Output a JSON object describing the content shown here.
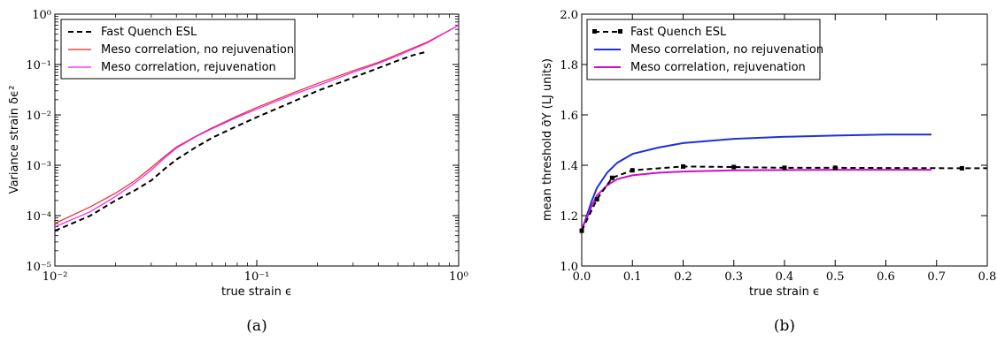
{
  "chart_data": [
    {
      "type": "line",
      "panel_caption": "(a)",
      "xlabel": "true strain ϵ",
      "ylabel": "Variance strain δϵ²",
      "xscale": "log",
      "yscale": "log",
      "xlim": [
        0.01,
        1
      ],
      "ylim": [
        1e-05,
        1
      ],
      "x_tick_labels": [
        "10⁻²",
        "10⁻¹",
        "10⁰"
      ],
      "y_tick_labels": [
        "10⁻⁵",
        "10⁻⁴",
        "10⁻³",
        "10⁻²",
        "10⁻¹",
        "10⁰"
      ],
      "legend_position": "top-left",
      "series": [
        {
          "name": "Fast Quench ESL",
          "color": "#000000",
          "style": "dashed",
          "x": [
            0.01,
            0.015,
            0.02,
            0.025,
            0.03,
            0.035,
            0.04,
            0.05,
            0.06,
            0.08,
            0.1,
            0.15,
            0.2,
            0.3,
            0.4,
            0.5,
            0.6,
            0.7
          ],
          "y": [
            5e-05,
            0.0001,
            0.0002,
            0.00032,
            0.0005,
            0.00085,
            0.0013,
            0.0023,
            0.0035,
            0.006,
            0.009,
            0.018,
            0.03,
            0.055,
            0.085,
            0.12,
            0.155,
            0.18
          ]
        },
        {
          "name": "Meso correlation, no rejuvenation",
          "color": "#ee2222",
          "style": "solid",
          "x": [
            0.01,
            0.015,
            0.02,
            0.025,
            0.03,
            0.035,
            0.04,
            0.05,
            0.06,
            0.08,
            0.1,
            0.15,
            0.2,
            0.3,
            0.4,
            0.5,
            0.7,
            1.0
          ],
          "y": [
            7e-05,
            0.00015,
            0.00028,
            0.0005,
            0.0009,
            0.0015,
            0.0023,
            0.0038,
            0.0055,
            0.0095,
            0.014,
            0.027,
            0.042,
            0.075,
            0.11,
            0.16,
            0.28,
            0.6
          ]
        },
        {
          "name": "Meso correlation, rejuvenation",
          "color": "#ee22ee",
          "style": "solid",
          "x": [
            0.01,
            0.015,
            0.02,
            0.025,
            0.03,
            0.035,
            0.04,
            0.05,
            0.06,
            0.08,
            0.1,
            0.15,
            0.2,
            0.3,
            0.4,
            0.5,
            0.7,
            1.0
          ],
          "y": [
            6e-05,
            0.00012,
            0.00024,
            0.00045,
            0.0008,
            0.0014,
            0.0022,
            0.0037,
            0.0053,
            0.009,
            0.013,
            0.025,
            0.038,
            0.07,
            0.105,
            0.15,
            0.27,
            0.6
          ]
        }
      ]
    },
    {
      "type": "line",
      "panel_caption": "(b)",
      "xlabel": "true strain ϵ",
      "ylabel": "mean threshold σ̄Y (LJ units)",
      "xlim": [
        0,
        0.8
      ],
      "ylim": [
        1.0,
        2.0
      ],
      "x_tick_labels": [
        "0.0",
        "0.1",
        "0.2",
        "0.3",
        "0.4",
        "0.5",
        "0.6",
        "0.7",
        "0.8"
      ],
      "y_tick_labels": [
        "1.0",
        "1.2",
        "1.4",
        "1.6",
        "1.8",
        "2.0"
      ],
      "legend_position": "top-left",
      "series": [
        {
          "name": "Fast Quench ESL",
          "color": "#000000",
          "style": "dashed",
          "markers": "square",
          "x": [
            0.0,
            0.03,
            0.06,
            0.1,
            0.2,
            0.3,
            0.4,
            0.5,
            0.75
          ],
          "y": [
            1.14,
            1.265,
            1.35,
            1.38,
            1.395,
            1.393,
            1.39,
            1.39,
            1.388
          ],
          "extends_to": 0.8
        },
        {
          "name": "Meso correlation, no rejuvenation",
          "color": "#1f2fdc",
          "style": "solid",
          "x": [
            0.0,
            0.01,
            0.02,
            0.03,
            0.05,
            0.07,
            0.1,
            0.15,
            0.2,
            0.3,
            0.4,
            0.5,
            0.6,
            0.69
          ],
          "y": [
            1.14,
            1.2,
            1.26,
            1.31,
            1.37,
            1.41,
            1.445,
            1.47,
            1.488,
            1.505,
            1.513,
            1.518,
            1.522,
            1.522
          ]
        },
        {
          "name": "Meso correlation, rejuvenation",
          "color": "#cc11cc",
          "style": "solid",
          "x": [
            0.0,
            0.01,
            0.02,
            0.03,
            0.05,
            0.07,
            0.1,
            0.15,
            0.2,
            0.3,
            0.4,
            0.5,
            0.6,
            0.69
          ],
          "y": [
            1.15,
            1.19,
            1.24,
            1.28,
            1.32,
            1.345,
            1.36,
            1.37,
            1.375,
            1.38,
            1.381,
            1.382,
            1.382,
            1.382
          ]
        }
      ]
    }
  ]
}
